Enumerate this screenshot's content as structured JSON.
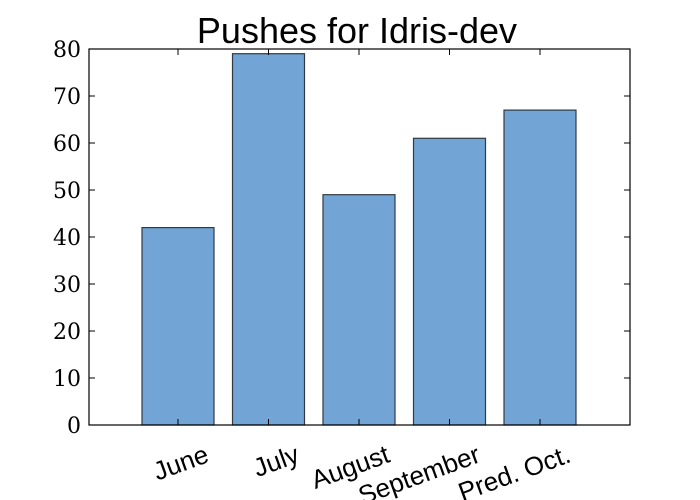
{
  "chart_data": {
    "type": "bar",
    "title": "Pushes for Idris-dev",
    "xlabel": "",
    "ylabel": "",
    "categories": [
      "June",
      "July",
      "August",
      "September",
      "Pred. Oct."
    ],
    "values": [
      42,
      79,
      49,
      61,
      67
    ],
    "ylim": [
      0,
      80
    ],
    "yticks": [
      0,
      10,
      20,
      30,
      40,
      50,
      60,
      70,
      80
    ],
    "grid": false,
    "bar_color": "#72a5d6",
    "bar_edge_color": "#2f3a42"
  }
}
